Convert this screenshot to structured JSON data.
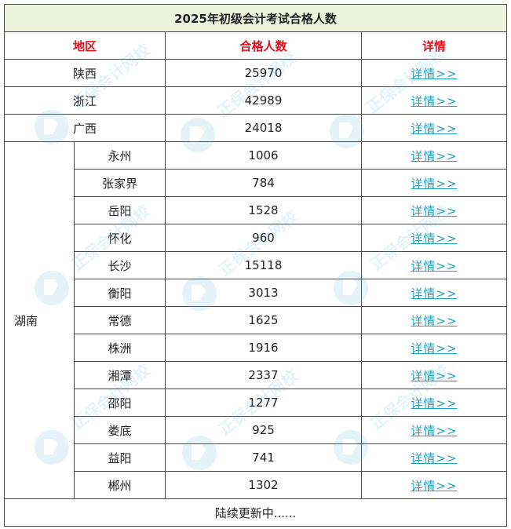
{
  "table": {
    "title": "2025年初级会计考试合格人数",
    "headers": {
      "region": "地区",
      "count": "合格人数",
      "details": "详情"
    },
    "link_text": "详情>>",
    "provinces": [
      {
        "name": "陕西",
        "count": "25970"
      },
      {
        "name": "浙江",
        "count": "42989"
      },
      {
        "name": "广西",
        "count": "24018"
      }
    ],
    "hunan": {
      "name": "湖南",
      "cities": [
        {
          "name": "永州",
          "count": "1006"
        },
        {
          "name": "张家界",
          "count": "784"
        },
        {
          "name": "岳阳",
          "count": "1528"
        },
        {
          "name": "怀化",
          "count": "960"
        },
        {
          "name": "长沙",
          "count": "15118"
        },
        {
          "name": "衡阳",
          "count": "3013"
        },
        {
          "name": "常德",
          "count": "1625"
        },
        {
          "name": "株洲",
          "count": "1916"
        },
        {
          "name": "湘潭",
          "count": "2337"
        },
        {
          "name": "邵阳",
          "count": "1277"
        },
        {
          "name": "娄底",
          "count": "925"
        },
        {
          "name": "益阳",
          "count": "741"
        },
        {
          "name": "郴州",
          "count": "1302"
        }
      ]
    },
    "footer": "陆续更新中......"
  },
  "watermark_text": "正保会计网校"
}
